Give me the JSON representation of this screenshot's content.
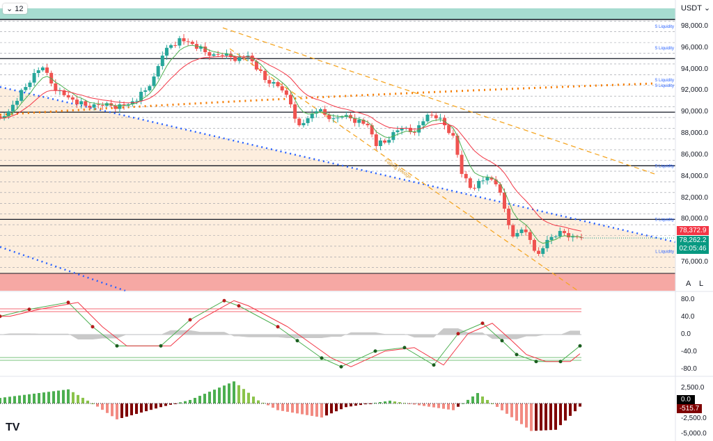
{
  "toolbar": {
    "interval": "12",
    "currency": "USDT",
    "auto_button": "A",
    "log_button": "L"
  },
  "price_tags": {
    "high": "78,372.9",
    "last": "78,262.2",
    "countdown": "02:05:46"
  },
  "osc_tags": {
    "zero": "0.0",
    "value": "-515.7"
  },
  "labels": {
    "pattern": "Falling Wedge",
    "s_liq": "S Liquidity",
    "l_liq": "L Liquidity"
  },
  "colors": {
    "up": "#26a69a",
    "down": "#ef5350",
    "fast_ma": "#4caf50",
    "slow_ma": "#f23645",
    "wedge": "#f5a623",
    "trend": "#2962ff"
  },
  "chart_data": [
    {
      "type": "candlestick",
      "title": "Price (USDT)",
      "ylim": [
        75000,
        99000
      ],
      "y_ticks": [
        "98,000.0",
        "96,000.0",
        "94,000.0",
        "92,000.0",
        "90,000.0",
        "88,000.0",
        "86,000.0",
        "84,000.0",
        "82,000.0",
        "80,000.0",
        "76,000.0"
      ],
      "closes": [
        89430,
        90080,
        91060,
        92350,
        93650,
        94170,
        92680,
        92030,
        91380,
        90730,
        90600,
        90730,
        90600,
        90600,
        90730,
        90730,
        91060,
        92030,
        93330,
        95280,
        96250,
        96900,
        96570,
        95920,
        95600,
        95400,
        95280,
        95140,
        95140,
        95280,
        93980,
        93000,
        92810,
        92030,
        90730,
        88780,
        89430,
        90080,
        89760,
        89430,
        89560,
        89430,
        89300,
        88780,
        86840,
        87160,
        88140,
        88460,
        88140,
        88780,
        89760,
        89430,
        88780,
        87810,
        84240,
        82940,
        83590,
        83920,
        83270,
        81000,
        78400,
        79050,
        78080,
        76780,
        78080,
        78400,
        78720,
        78400,
        78262
      ],
      "key_levels": [
        95000,
        90000,
        85000,
        80000
      ],
      "liquidity": [
        {
          "price": 98000,
          "side": "S"
        },
        {
          "price": 96000,
          "side": "S"
        },
        {
          "price": 93000,
          "side": "S"
        },
        {
          "price": 92500,
          "side": "S"
        },
        {
          "price": 85000,
          "side": "S"
        },
        {
          "price": 80000,
          "side": "S"
        },
        {
          "price": 77000,
          "side": "L"
        }
      ]
    },
    {
      "type": "line",
      "title": "Stochastic RSI",
      "ylim": [
        -100,
        100
      ],
      "y_ticks": [
        "80.0",
        "40.0",
        "0.0",
        "-40.0",
        "-80.0"
      ],
      "x": [
        0,
        6,
        14,
        19,
        24,
        33,
        39,
        46,
        49,
        57,
        61,
        66,
        70,
        77,
        83,
        89,
        94,
        99,
        103,
        106,
        110,
        115,
        119
      ],
      "values": [
        42,
        58,
        74,
        18,
        -26,
        -26,
        34,
        78,
        66,
        18,
        -14,
        -54,
        -74,
        -38,
        -30,
        -70,
        2,
        26,
        -14,
        -46,
        -62,
        -62,
        -26
      ]
    },
    {
      "type": "bar",
      "title": "MACD histogram",
      "ylim": [
        -6000,
        3500
      ],
      "y_ticks": [
        "2,500.0",
        "0.0",
        "-2,500.0",
        "-5,000.0"
      ],
      "x": [
        0,
        14,
        19,
        24,
        33,
        39,
        48,
        53,
        57,
        66,
        71,
        80,
        86,
        93,
        98,
        101,
        109,
        114,
        119
      ],
      "values": [
        900,
        2300,
        0,
        -2600,
        -600,
        570,
        3600,
        500,
        -1100,
        -2300,
        -600,
        450,
        -300,
        -1100,
        1700,
        0,
        -4500,
        -4300,
        -515.7
      ]
    }
  ]
}
